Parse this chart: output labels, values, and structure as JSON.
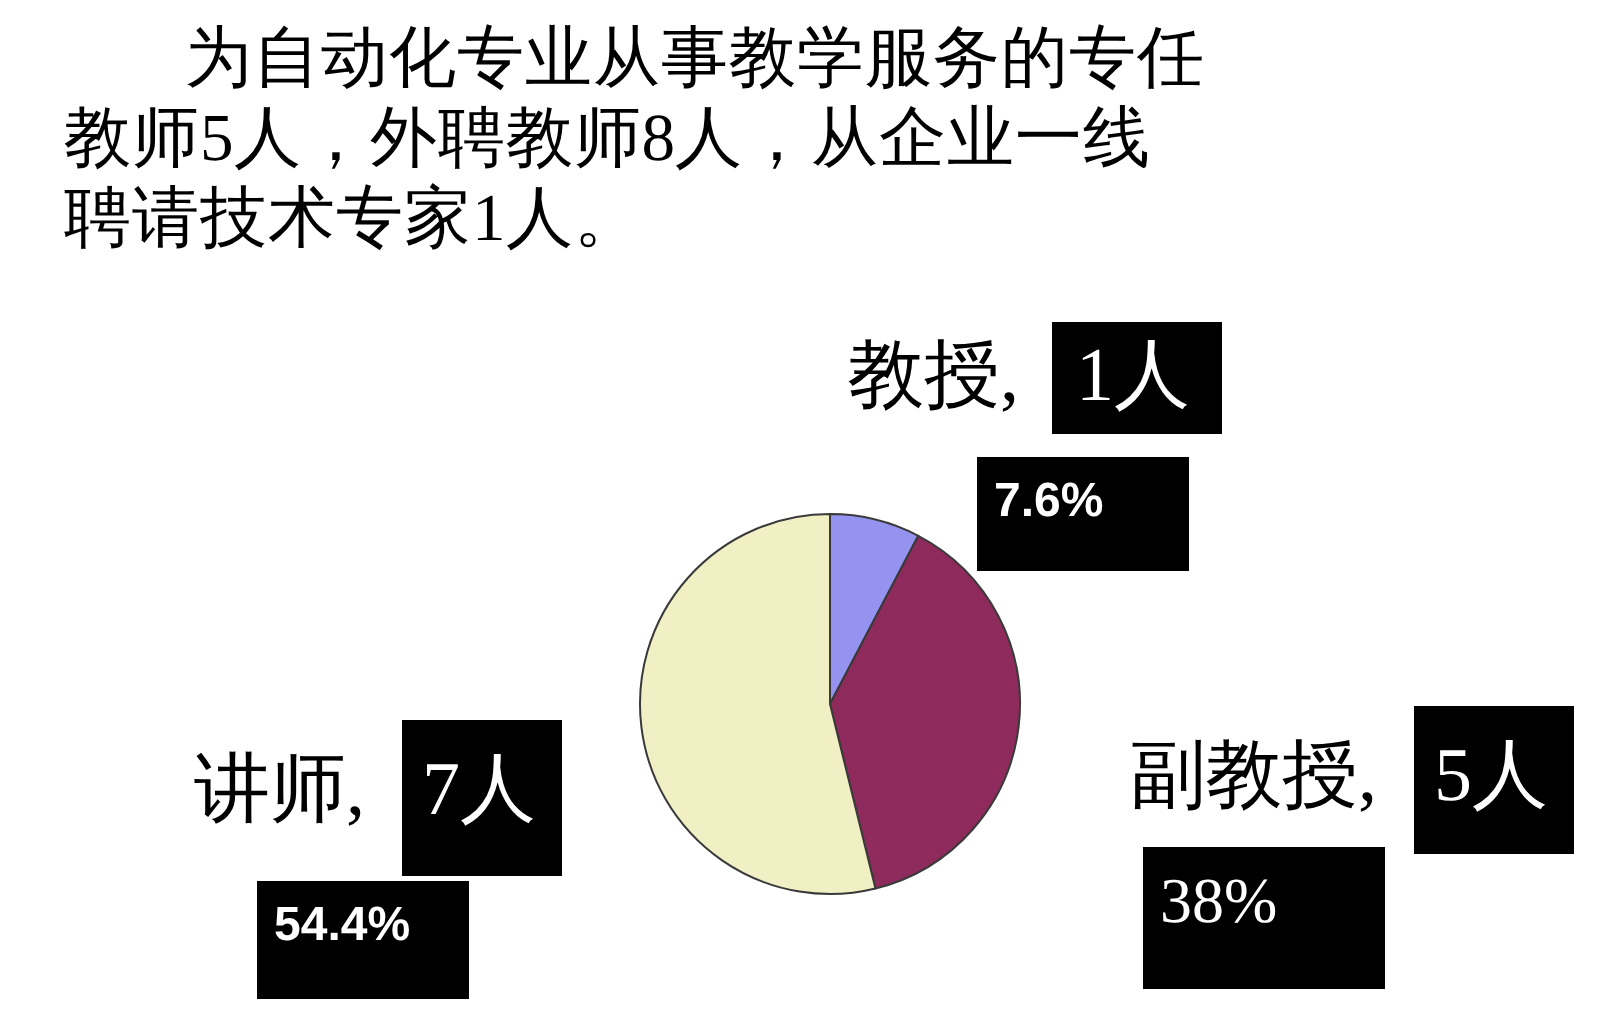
{
  "chart_data": {
    "type": "pie",
    "title": "为自动化专业从事教学服务的专任教师5人，外聘教师8人，从企业一线聘请技术专家1人。",
    "categories": [
      "教授",
      "副教授",
      "讲师"
    ],
    "values": [
      1,
      5,
      7
    ],
    "value_labels": [
      "1人",
      "5人",
      "7人"
    ],
    "colors": [
      "#9494f0",
      "#8f2a5d",
      "#f1efc4"
    ],
    "annotations": [
      "7.6%",
      "38%",
      "54.4%"
    ]
  }
}
